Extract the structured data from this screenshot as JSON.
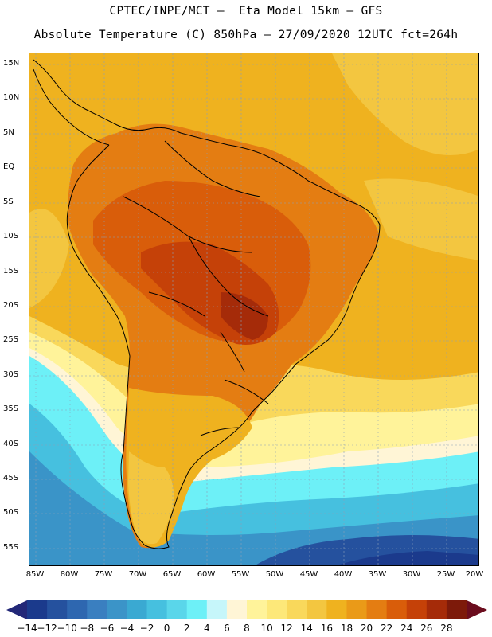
{
  "header": {
    "line1": "CPTEC/INPE/MCT –  Eta Model 15km – GFS",
    "line2": "Absolute Temperature (C) 850hPa – 27/09/2020 12UTC fct=264h"
  },
  "axes": {
    "lat_labels": [
      "15N",
      "10N",
      "5N",
      "EQ",
      "5S",
      "10S",
      "15S",
      "20S",
      "25S",
      "30S",
      "35S",
      "40S",
      "45S",
      "50S",
      "55S"
    ],
    "lon_labels": [
      "85W",
      "80W",
      "75W",
      "70W",
      "65W",
      "60W",
      "55W",
      "50W",
      "45W",
      "40W",
      "35W",
      "30W",
      "25W",
      "20W"
    ]
  },
  "colorbar": {
    "labels": [
      "-14",
      "-12",
      "-10",
      "-8",
      "-6",
      "-4",
      "-2",
      "0",
      "2",
      "4",
      "6",
      "8",
      "10",
      "12",
      "14",
      "16",
      "18",
      "20",
      "22",
      "24",
      "26",
      "28"
    ],
    "colors": [
      "#1b3a8c",
      "#25519e",
      "#2e67b0",
      "#3a7fc0",
      "#3b94c8",
      "#3aa9d2",
      "#46c0df",
      "#5ad6ea",
      "#6df0f7",
      "#c6f6fa",
      "#fff5d6",
      "#fff39a",
      "#fde879",
      "#f9d85b",
      "#f3c640",
      "#efb21f",
      "#ea9a18",
      "#e47d12",
      "#d95d0a",
      "#c54108",
      "#a52b09",
      "#7d1a0a"
    ],
    "low_arrow_color": "#232878",
    "high_arrow_color": "#6b0d1e"
  },
  "map_colors": {
    "ocean_warm": "#efb21f",
    "ocean_warm_alt": "#f3c640",
    "land_hot": "#e47d12",
    "land_hotter": "#d95d0a",
    "land_hottest": "#c54108",
    "cool_band": "#fff39a",
    "pale_band": "#fff5d6",
    "cyan": "#6df0f7",
    "light_blue": "#46c0df",
    "mid_blue": "#3a7fc0",
    "deep_blue": "#25519e"
  }
}
